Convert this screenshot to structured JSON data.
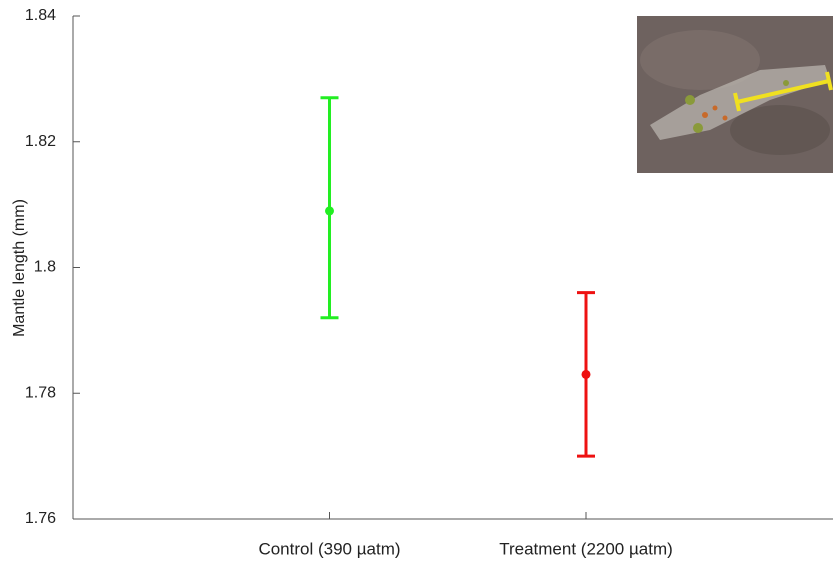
{
  "chart_data": {
    "type": "errorbar",
    "y_label": "Mantle length (mm)",
    "categories": [
      "Control (390 µatm)",
      "Treatment (2200 µatm)"
    ],
    "values": [
      1.809,
      1.783
    ],
    "error_low": [
      0.017,
      0.013
    ],
    "error_high": [
      0.018,
      0.013
    ],
    "colors": [
      "#22ee22",
      "#ee1111"
    ],
    "ylim": [
      1.76,
      1.84
    ],
    "yticks": [
      1.76,
      1.78,
      1.8,
      1.82,
      1.84
    ],
    "grid": false
  }
}
